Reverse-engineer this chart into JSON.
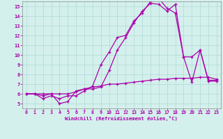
{
  "xlabel": "Windchill (Refroidissement éolien,°C)",
  "xlim": [
    -0.5,
    23.5
  ],
  "ylim": [
    4.5,
    15.5
  ],
  "xticks": [
    0,
    1,
    2,
    3,
    4,
    5,
    6,
    7,
    8,
    9,
    10,
    11,
    12,
    13,
    14,
    15,
    16,
    17,
    18,
    19,
    20,
    21,
    22,
    23
  ],
  "yticks": [
    5,
    6,
    7,
    8,
    9,
    10,
    11,
    12,
    13,
    14,
    15
  ],
  "bg_color": "#d4f0ec",
  "line_color": "#aa00aa",
  "grid_color": "#b0d8d4",
  "line1_x": [
    0,
    1,
    2,
    3,
    4,
    5,
    6,
    7,
    8,
    9,
    10,
    11,
    12,
    13,
    14,
    15,
    16,
    17,
    18,
    19,
    20,
    21,
    22,
    23
  ],
  "line1_y": [
    6.0,
    6.0,
    5.8,
    6.0,
    5.0,
    5.2,
    6.3,
    6.5,
    6.5,
    6.7,
    8.4,
    10.5,
    11.8,
    13.3,
    14.5,
    15.3,
    15.2,
    14.5,
    15.2,
    9.8,
    9.8,
    10.5,
    7.3,
    7.3
  ],
  "line2_x": [
    0,
    1,
    2,
    3,
    4,
    5,
    6,
    7,
    8,
    9,
    10,
    11,
    12,
    13,
    14,
    15,
    16,
    17,
    18,
    19,
    20,
    21,
    22,
    23
  ],
  "line2_y": [
    6.0,
    6.0,
    5.5,
    5.8,
    5.5,
    5.8,
    5.8,
    6.3,
    6.8,
    9.0,
    10.3,
    11.8,
    12.0,
    13.5,
    14.3,
    15.5,
    15.8,
    14.8,
    14.3,
    9.8,
    7.2,
    10.5,
    7.4,
    7.4
  ],
  "line3_x": [
    0,
    1,
    2,
    3,
    4,
    5,
    6,
    7,
    8,
    9,
    10,
    11,
    12,
    13,
    14,
    15,
    16,
    17,
    18,
    19,
    20,
    21,
    22,
    23
  ],
  "line3_y": [
    6.0,
    6.0,
    6.0,
    6.0,
    6.0,
    6.0,
    6.2,
    6.5,
    6.7,
    6.8,
    7.0,
    7.0,
    7.1,
    7.2,
    7.3,
    7.4,
    7.5,
    7.5,
    7.6,
    7.6,
    7.6,
    7.7,
    7.7,
    7.5
  ]
}
